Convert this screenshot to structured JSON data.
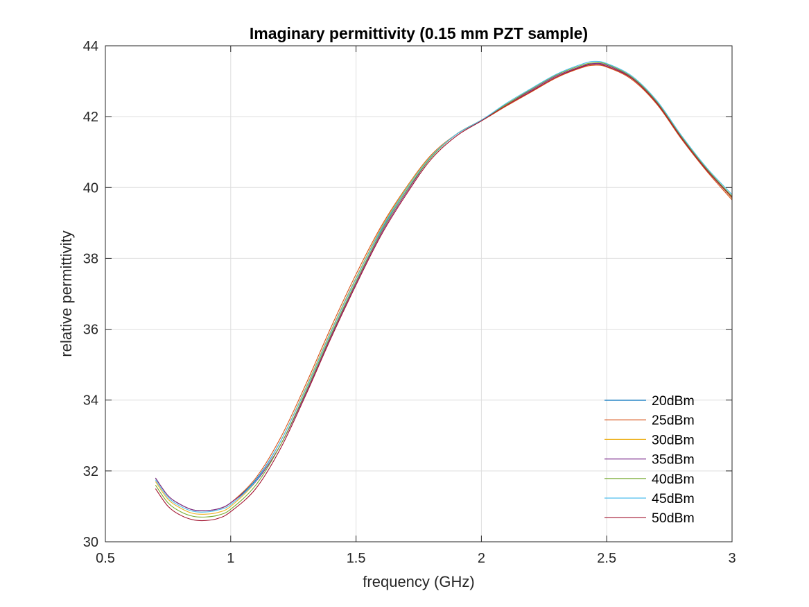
{
  "chart_data": {
    "type": "line",
    "title": "Imaginary permittivity (0.15 mm PZT sample)",
    "xlabel": "frequency (GHz)",
    "ylabel": "relative permittivity",
    "xlim": [
      0.5,
      3
    ],
    "ylim": [
      30,
      44
    ],
    "xticks": [
      0.5,
      1,
      1.5,
      2,
      2.5,
      3
    ],
    "xtick_labels": [
      "0.5",
      "1",
      "1.5",
      "2",
      "2.5",
      "3"
    ],
    "yticks": [
      30,
      32,
      34,
      36,
      38,
      40,
      42,
      44
    ],
    "ytick_labels": [
      "30",
      "32",
      "34",
      "36",
      "38",
      "40",
      "42",
      "44"
    ],
    "grid": true,
    "legend_position": "bottom-right",
    "x": [
      0.7,
      0.75,
      0.8,
      0.85,
      0.9,
      0.95,
      1.0,
      1.1,
      1.2,
      1.3,
      1.4,
      1.5,
      1.6,
      1.7,
      1.8,
      1.9,
      2.0,
      2.1,
      2.2,
      2.3,
      2.4,
      2.45,
      2.5,
      2.6,
      2.7,
      2.8,
      2.9,
      3.0
    ],
    "series": [
      {
        "name": "20dBm",
        "color": "#0072BD",
        "values": [
          31.8,
          31.3,
          31.05,
          30.9,
          30.88,
          30.93,
          31.1,
          31.75,
          32.85,
          34.35,
          35.95,
          37.45,
          38.8,
          39.95,
          40.9,
          41.5,
          41.9,
          42.35,
          42.75,
          43.15,
          43.42,
          43.5,
          43.45,
          43.1,
          42.4,
          41.4,
          40.5,
          39.7
        ]
      },
      {
        "name": "25dBm",
        "color": "#D95319",
        "values": [
          31.8,
          31.3,
          31.05,
          30.9,
          30.88,
          30.93,
          31.1,
          31.8,
          32.95,
          34.45,
          36.05,
          37.55,
          38.9,
          40.0,
          40.92,
          41.5,
          41.88,
          42.3,
          42.7,
          43.1,
          43.38,
          43.45,
          43.4,
          43.05,
          42.35,
          41.35,
          40.45,
          39.65
        ]
      },
      {
        "name": "30dBm",
        "color": "#EDB120",
        "values": [
          31.7,
          31.2,
          30.95,
          30.8,
          30.78,
          30.83,
          31.0,
          31.7,
          32.85,
          34.35,
          35.95,
          37.45,
          38.85,
          39.98,
          40.9,
          41.5,
          41.9,
          42.35,
          42.75,
          43.15,
          43.42,
          43.5,
          43.45,
          43.1,
          42.4,
          41.4,
          40.5,
          39.7
        ]
      },
      {
        "name": "35dBm",
        "color": "#7E2F8E",
        "values": [
          31.8,
          31.3,
          31.05,
          30.9,
          30.88,
          30.93,
          31.1,
          31.7,
          32.75,
          34.2,
          35.8,
          37.3,
          38.7,
          39.85,
          40.85,
          41.5,
          41.9,
          42.35,
          42.75,
          43.15,
          43.42,
          43.5,
          43.45,
          43.1,
          42.4,
          41.4,
          40.5,
          39.75
        ]
      },
      {
        "name": "40dBm",
        "color": "#77AC30",
        "values": [
          31.6,
          31.1,
          30.85,
          30.72,
          30.7,
          30.75,
          30.92,
          31.6,
          32.75,
          34.25,
          35.85,
          37.35,
          38.75,
          39.9,
          40.85,
          41.5,
          41.9,
          42.35,
          42.78,
          43.18,
          43.45,
          43.52,
          43.48,
          43.12,
          42.42,
          41.42,
          40.52,
          39.75
        ]
      },
      {
        "name": "45dBm",
        "color": "#4DBEEE",
        "values": [
          31.75,
          31.25,
          31.0,
          30.86,
          30.84,
          30.9,
          31.05,
          31.72,
          32.85,
          34.32,
          35.92,
          37.42,
          38.82,
          39.95,
          40.88,
          41.5,
          41.9,
          42.38,
          42.8,
          43.2,
          43.48,
          43.56,
          43.5,
          43.15,
          42.45,
          41.45,
          40.55,
          39.8
        ]
      },
      {
        "name": "50dBm",
        "color": "#A2142F",
        "values": [
          31.5,
          31.0,
          30.75,
          30.62,
          30.6,
          30.66,
          30.85,
          31.5,
          32.65,
          34.15,
          35.75,
          37.25,
          38.65,
          39.8,
          40.8,
          41.45,
          41.88,
          42.32,
          42.72,
          43.12,
          43.4,
          43.48,
          43.42,
          43.08,
          42.38,
          41.38,
          40.48,
          39.72
        ]
      }
    ]
  }
}
